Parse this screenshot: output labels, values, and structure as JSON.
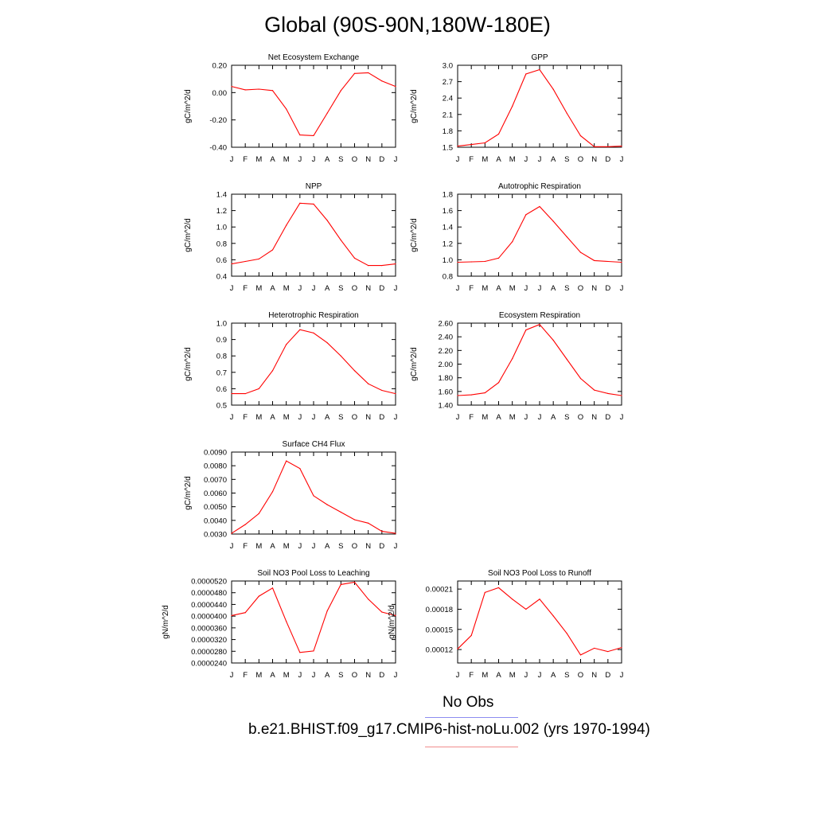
{
  "page": {
    "title": "Global (90S-90N,180W-180E)"
  },
  "legend": {
    "items": [
      {
        "label": "No Obs",
        "color": "#8c8cf0"
      },
      {
        "label": "b.e21.BHIST.f09_g17.CMIP6-hist-noLu.002 (yrs 1970-1994)",
        "color": "#f08c8c"
      }
    ]
  },
  "line_color": "#ff0000",
  "chart_data": [
    {
      "type": "line",
      "title": "Net Ecosystem Exchange",
      "ylabel": "gC/m^2/d",
      "categories": [
        "J",
        "F",
        "M",
        "A",
        "M",
        "J",
        "J",
        "A",
        "S",
        "O",
        "N",
        "D",
        "J"
      ],
      "ylim": [
        -0.4,
        0.2
      ],
      "yticks": [
        "0.20",
        "0.00",
        "-0.20",
        "-0.40"
      ],
      "ytick_values": [
        0.2,
        0.0,
        -0.2,
        -0.4
      ],
      "series": [
        {
          "values": [
            0.045,
            0.02,
            0.025,
            0.015,
            -0.12,
            -0.31,
            -0.315,
            -0.15,
            0.015,
            0.14,
            0.145,
            0.085,
            0.045
          ]
        }
      ]
    },
    {
      "type": "line",
      "title": "GPP",
      "ylabel": "gC/m^2/d",
      "categories": [
        "J",
        "F",
        "M",
        "A",
        "M",
        "J",
        "J",
        "A",
        "S",
        "O",
        "N",
        "D",
        "J"
      ],
      "ylim": [
        1.5,
        3.0
      ],
      "yticks": [
        "3.0",
        "2.7",
        "2.4",
        "2.1",
        "1.8",
        "1.5"
      ],
      "ytick_values": [
        3.0,
        2.7,
        2.4,
        2.1,
        1.8,
        1.5
      ],
      "series": [
        {
          "values": [
            1.52,
            1.55,
            1.58,
            1.74,
            2.25,
            2.84,
            2.92,
            2.56,
            2.12,
            1.71,
            1.51,
            1.51,
            1.52
          ]
        }
      ]
    },
    {
      "type": "line",
      "title": "NPP",
      "ylabel": "gC/m^2/d",
      "categories": [
        "J",
        "F",
        "M",
        "A",
        "M",
        "J",
        "J",
        "A",
        "S",
        "O",
        "N",
        "D",
        "J"
      ],
      "ylim": [
        0.4,
        1.4
      ],
      "yticks": [
        "1.4",
        "1.2",
        "1.0",
        "0.8",
        "0.6",
        "0.4"
      ],
      "ytick_values": [
        1.4,
        1.2,
        1.0,
        0.8,
        0.6,
        0.4
      ],
      "series": [
        {
          "values": [
            0.55,
            0.58,
            0.61,
            0.72,
            1.02,
            1.29,
            1.28,
            1.08,
            0.84,
            0.62,
            0.53,
            0.53,
            0.55
          ]
        }
      ]
    },
    {
      "type": "line",
      "title": "Autotrophic Respiration",
      "ylabel": "gC/m^2/d",
      "categories": [
        "J",
        "F",
        "M",
        "A",
        "M",
        "J",
        "J",
        "A",
        "S",
        "O",
        "N",
        "D",
        "J"
      ],
      "ylim": [
        0.8,
        1.8
      ],
      "yticks": [
        "1.8",
        "1.6",
        "1.4",
        "1.2",
        "1.0",
        "0.8"
      ],
      "ytick_values": [
        1.8,
        1.6,
        1.4,
        1.2,
        1.0,
        0.8
      ],
      "series": [
        {
          "values": [
            0.97,
            0.975,
            0.98,
            1.02,
            1.22,
            1.55,
            1.65,
            1.47,
            1.28,
            1.09,
            0.99,
            0.98,
            0.97
          ]
        }
      ]
    },
    {
      "type": "line",
      "title": "Heterotrophic Respiration",
      "ylabel": "gC/m^2/d",
      "categories": [
        "J",
        "F",
        "M",
        "A",
        "M",
        "J",
        "J",
        "A",
        "S",
        "O",
        "N",
        "D",
        "J"
      ],
      "ylim": [
        0.5,
        1.0
      ],
      "yticks": [
        "1.0",
        "0.9",
        "0.8",
        "0.7",
        "0.6",
        "0.5"
      ],
      "ytick_values": [
        1.0,
        0.9,
        0.8,
        0.7,
        0.6,
        0.5
      ],
      "series": [
        {
          "values": [
            0.57,
            0.57,
            0.6,
            0.71,
            0.87,
            0.96,
            0.94,
            0.88,
            0.8,
            0.71,
            0.63,
            0.59,
            0.57
          ]
        }
      ]
    },
    {
      "type": "line",
      "title": "Ecosystem Respiration",
      "ylabel": "gC/m^2/d",
      "categories": [
        "J",
        "F",
        "M",
        "A",
        "M",
        "J",
        "J",
        "A",
        "S",
        "O",
        "N",
        "D",
        "J"
      ],
      "ylim": [
        1.4,
        2.6
      ],
      "yticks": [
        "2.60",
        "2.40",
        "2.20",
        "2.00",
        "1.80",
        "1.60",
        "1.40"
      ],
      "ytick_values": [
        2.6,
        2.4,
        2.2,
        2.0,
        1.8,
        1.6,
        1.4
      ],
      "series": [
        {
          "values": [
            1.54,
            1.55,
            1.58,
            1.73,
            2.08,
            2.5,
            2.58,
            2.35,
            2.07,
            1.79,
            1.62,
            1.57,
            1.54
          ]
        }
      ]
    },
    {
      "type": "line",
      "title": "Surface CH4 Flux",
      "ylabel": "gC/m^2/d",
      "categories": [
        "J",
        "F",
        "M",
        "A",
        "M",
        "J",
        "J",
        "A",
        "S",
        "O",
        "N",
        "D",
        "J"
      ],
      "ylim": [
        0.003,
        0.009
      ],
      "yticks": [
        "0.0090",
        "0.0080",
        "0.0070",
        "0.0060",
        "0.0050",
        "0.0040",
        "0.0030"
      ],
      "ytick_values": [
        0.009,
        0.008,
        0.007,
        0.006,
        0.005,
        0.004,
        0.003
      ],
      "series": [
        {
          "values": [
            0.00305,
            0.0037,
            0.0045,
            0.0061,
            0.00835,
            0.0078,
            0.0058,
            0.00515,
            0.0046,
            0.00405,
            0.0038,
            0.0032,
            0.00305
          ]
        }
      ]
    },
    {
      "type": "line",
      "title": "Soil NO3 Pool Loss to Leaching",
      "ylabel": "gN/m^2/d",
      "categories": [
        "J",
        "F",
        "M",
        "A",
        "M",
        "J",
        "J",
        "A",
        "S",
        "O",
        "N",
        "D",
        "J"
      ],
      "ylim": [
        2.4e-05,
        5.2e-05
      ],
      "yticks": [
        "0.0000520",
        "0.0000480",
        "0.0000440",
        "0.0000400",
        "0.0000360",
        "0.0000320",
        "0.0000280",
        "0.0000240"
      ],
      "ytick_values": [
        5.2e-05,
        4.8e-05,
        4.4e-05,
        4e-05,
        3.6e-05,
        3.2e-05,
        2.8e-05,
        2.4e-05
      ],
      "series": [
        {
          "values": [
            4.02e-05,
            4.12e-05,
            4.68e-05,
            4.96e-05,
            3.82e-05,
            2.76e-05,
            2.81e-05,
            4.18e-05,
            5.08e-05,
            5.16e-05,
            4.58e-05,
            4.14e-05,
            4.02e-05
          ]
        }
      ]
    },
    {
      "type": "line",
      "title": "Soil NO3 Pool Loss to Runoff",
      "ylabel": "gN/m^2/d",
      "categories": [
        "J",
        "F",
        "M",
        "A",
        "M",
        "J",
        "J",
        "A",
        "S",
        "O",
        "N",
        "D",
        "J"
      ],
      "ylim": [
        0.0001,
        0.000222
      ],
      "yticks": [
        "0.00021",
        "0.00018",
        "0.00015",
        "0.00012"
      ],
      "ytick_values": [
        0.00021,
        0.00018,
        0.00015,
        0.00012
      ],
      "series": [
        {
          "values": [
            0.000121,
            0.000141,
            0.000205,
            0.000212,
            0.000195,
            0.00018,
            0.000195,
            0.00017,
            0.000144,
            0.000112,
            0.000122,
            0.000117,
            0.000123
          ]
        }
      ]
    }
  ]
}
